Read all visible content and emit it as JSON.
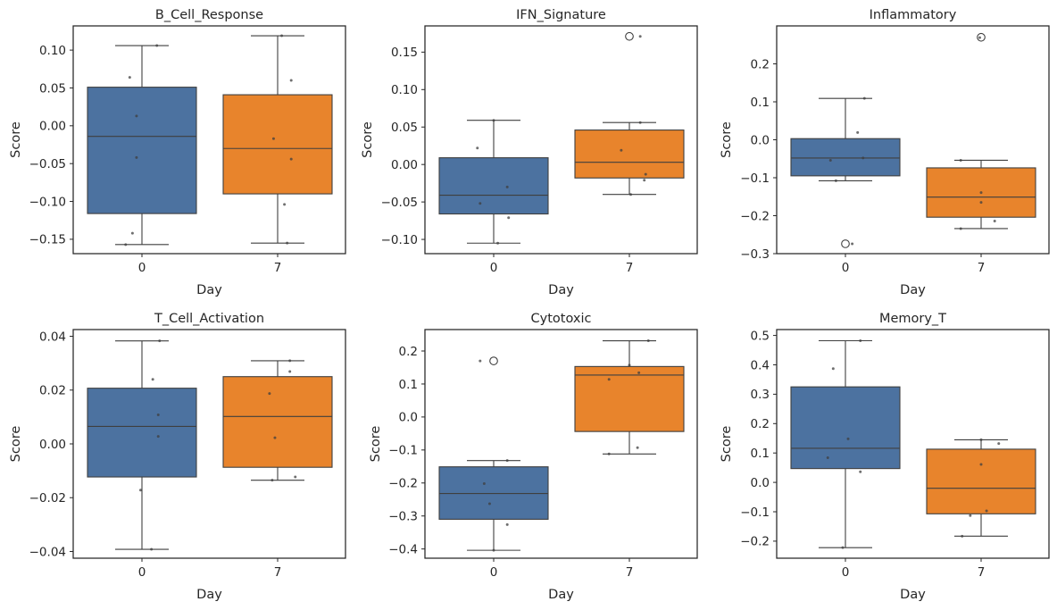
{
  "chart_data": [
    {
      "type": "box",
      "title": "B_Cell_Response",
      "xlabel": "Day",
      "ylabel": "Score",
      "categories": [
        "0",
        "7"
      ],
      "colors": [
        "#4c72a0",
        "#e8842c"
      ],
      "yticks": [
        -0.15,
        -0.1,
        -0.05,
        0.0,
        0.05,
        0.1
      ],
      "ytick_labels": [
        "−0.15",
        "−0.10",
        "−0.05",
        "0.00",
        "0.05",
        "0.10"
      ],
      "ylim": [
        -0.169,
        0.132
      ],
      "boxes": [
        {
          "q1": -0.116,
          "median": -0.014,
          "q3": 0.051,
          "whislo": -0.157,
          "whishi": 0.106,
          "fliers": []
        },
        {
          "q1": -0.09,
          "median": -0.03,
          "q3": 0.041,
          "whislo": -0.155,
          "whishi": 0.119,
          "fliers": []
        }
      ],
      "points": [
        [
          [
            -0.12,
            -0.157
          ],
          [
            -0.07,
            -0.142
          ],
          [
            -0.09,
            0.064
          ],
          [
            -0.04,
            -0.042
          ],
          [
            -0.04,
            0.013
          ],
          [
            0.11,
            0.106
          ]
        ],
        [
          [
            -0.03,
            -0.017
          ],
          [
            0.03,
            0.119
          ],
          [
            0.1,
            -0.044
          ],
          [
            0.1,
            0.06
          ],
          [
            0.05,
            -0.104
          ],
          [
            0.07,
            -0.155
          ]
        ]
      ]
    },
    {
      "type": "box",
      "title": "IFN_Signature",
      "xlabel": "Day",
      "ylabel": "Score",
      "categories": [
        "0",
        "7"
      ],
      "colors": [
        "#4c72a0",
        "#e8842c"
      ],
      "yticks": [
        -0.1,
        -0.05,
        0.0,
        0.05,
        0.1,
        0.15
      ],
      "ytick_labels": [
        "−0.10",
        "−0.05",
        "0.00",
        "0.05",
        "0.10",
        "0.15"
      ],
      "ylim": [
        -0.119,
        0.185
      ],
      "boxes": [
        {
          "q1": -0.066,
          "median": -0.041,
          "q3": 0.009,
          "whislo": -0.105,
          "whishi": 0.059,
          "fliers": []
        },
        {
          "q1": -0.018,
          "median": 0.003,
          "q3": 0.046,
          "whislo": -0.04,
          "whishi": 0.056,
          "fliers": [
            0.171
          ]
        }
      ],
      "points": [
        [
          [
            -0.12,
            0.022
          ],
          [
            -0.1,
            -0.052
          ],
          [
            0.0,
            0.059
          ],
          [
            0.1,
            -0.03
          ],
          [
            0.11,
            -0.071
          ],
          [
            0.03,
            -0.105
          ]
        ],
        [
          [
            -0.06,
            0.019
          ],
          [
            0.08,
            0.056
          ],
          [
            0.12,
            -0.013
          ],
          [
            0.11,
            -0.021
          ],
          [
            0.01,
            -0.04
          ],
          [
            0.08,
            0.171
          ]
        ]
      ]
    },
    {
      "type": "box",
      "title": "Inflammatory",
      "xlabel": "Day",
      "ylabel": "Score",
      "categories": [
        "0",
        "7"
      ],
      "colors": [
        "#4c72a0",
        "#e8842c"
      ],
      "yticks": [
        -0.3,
        -0.2,
        -0.1,
        0.0,
        0.1,
        0.2
      ],
      "ytick_labels": [
        "−0.3",
        "−0.2",
        "−0.1",
        "0.0",
        "0.1",
        "0.2"
      ],
      "ylim": [
        -0.3,
        0.3
      ],
      "boxes": [
        {
          "q1": -0.095,
          "median": -0.048,
          "q3": 0.003,
          "whislo": -0.108,
          "whishi": 0.109,
          "fliers": [
            -0.274
          ]
        },
        {
          "q1": -0.204,
          "median": -0.151,
          "q3": -0.074,
          "whislo": -0.234,
          "whishi": -0.054,
          "fliers": [
            0.27
          ]
        }
      ],
      "points": [
        [
          [
            -0.11,
            -0.054
          ],
          [
            -0.07,
            -0.108
          ],
          [
            0.09,
            0.019
          ],
          [
            0.13,
            -0.048
          ],
          [
            0.14,
            0.109
          ],
          [
            0.05,
            -0.274
          ]
        ],
        [
          [
            -0.01,
            0.269
          ],
          [
            0.0,
            -0.139
          ],
          [
            0.0,
            -0.165
          ],
          [
            0.1,
            -0.214
          ],
          [
            -0.15,
            -0.054
          ],
          [
            -0.15,
            -0.234
          ]
        ]
      ]
    },
    {
      "type": "box",
      "title": "T_Cell_Activation",
      "xlabel": "Day",
      "ylabel": "Score",
      "categories": [
        "0",
        "7"
      ],
      "colors": [
        "#4c72a0",
        "#e8842c"
      ],
      "yticks": [
        -0.04,
        -0.02,
        0.0,
        0.02,
        0.04
      ],
      "ytick_labels": [
        "−0.04",
        "−0.02",
        "0.00",
        "0.02",
        "0.04"
      ],
      "ylim": [
        -0.0425,
        0.0425
      ],
      "boxes": [
        {
          "q1": -0.0123,
          "median": 0.0065,
          "q3": 0.0207,
          "whislo": -0.0392,
          "whishi": 0.0383,
          "fliers": []
        },
        {
          "q1": -0.0087,
          "median": 0.0102,
          "q3": 0.025,
          "whislo": -0.0135,
          "whishi": 0.0309,
          "fliers": []
        }
      ],
      "points": [
        [
          [
            -0.01,
            -0.0172
          ],
          [
            0.08,
            0.024
          ],
          [
            0.12,
            0.0108
          ],
          [
            0.12,
            0.0028
          ],
          [
            0.13,
            0.0383
          ],
          [
            0.07,
            -0.0392
          ]
        ],
        [
          [
            -0.06,
            0.0187
          ],
          [
            -0.02,
            0.0023
          ],
          [
            -0.04,
            -0.0135
          ],
          [
            0.09,
            0.0309
          ],
          [
            0.09,
            0.0269
          ],
          [
            0.13,
            -0.0123
          ]
        ]
      ]
    },
    {
      "type": "box",
      "title": "Cytotoxic",
      "xlabel": "Day",
      "ylabel": "Score",
      "categories": [
        "0",
        "7"
      ],
      "colors": [
        "#4c72a0",
        "#e8842c"
      ],
      "yticks": [
        -0.4,
        -0.3,
        -0.2,
        -0.1,
        0.0,
        0.1,
        0.2
      ],
      "ytick_labels": [
        "−0.4",
        "−0.3",
        "−0.2",
        "−0.1",
        "0.0",
        "0.1",
        "0.2"
      ],
      "ylim": [
        -0.428,
        0.265
      ],
      "boxes": [
        {
          "q1": -0.31,
          "median": -0.232,
          "q3": -0.151,
          "whislo": -0.404,
          "whishi": -0.132,
          "fliers": [
            0.17
          ]
        },
        {
          "q1": -0.044,
          "median": 0.127,
          "q3": 0.153,
          "whislo": -0.112,
          "whishi": 0.231,
          "fliers": []
        }
      ],
      "points": [
        [
          [
            -0.1,
            0.17
          ],
          [
            -0.07,
            -0.202
          ],
          [
            -0.03,
            -0.263
          ],
          [
            0.1,
            -0.132
          ],
          [
            0.1,
            -0.326
          ],
          [
            0.0,
            -0.404
          ]
        ],
        [
          [
            -0.15,
            -0.112
          ],
          [
            -0.15,
            0.114
          ],
          [
            0.0,
            0.157
          ],
          [
            0.07,
            0.134
          ],
          [
            0.14,
            0.231
          ],
          [
            0.06,
            -0.093
          ]
        ]
      ]
    },
    {
      "type": "box",
      "title": "Memory_T",
      "xlabel": "Day",
      "ylabel": "Score",
      "categories": [
        "0",
        "7"
      ],
      "colors": [
        "#4c72a0",
        "#e8842c"
      ],
      "yticks": [
        -0.2,
        -0.1,
        0.0,
        0.1,
        0.2,
        0.3,
        0.4,
        0.5
      ],
      "ytick_labels": [
        "−0.2",
        "−0.1",
        "0.0",
        "0.1",
        "0.2",
        "0.3",
        "0.4",
        "0.5"
      ],
      "ylim": [
        -0.258,
        0.52
      ],
      "boxes": [
        {
          "q1": 0.047,
          "median": 0.116,
          "q3": 0.325,
          "whislo": -0.222,
          "whishi": 0.482,
          "fliers": []
        },
        {
          "q1": -0.107,
          "median": -0.02,
          "q3": 0.113,
          "whislo": -0.183,
          "whishi": 0.145,
          "fliers": []
        }
      ],
      "points": [
        [
          [
            -0.13,
            0.084
          ],
          [
            -0.09,
            0.387
          ],
          [
            0.02,
            0.148
          ],
          [
            0.11,
            0.482
          ],
          [
            0.11,
            0.036
          ],
          [
            -0.02,
            -0.222
          ]
        ],
        [
          [
            -0.14,
            -0.183
          ],
          [
            -0.08,
            -0.113
          ],
          [
            0.0,
            0.061
          ],
          [
            0.04,
            -0.097
          ],
          [
            0.13,
            0.132
          ],
          [
            0.0,
            0.145
          ]
        ]
      ]
    }
  ]
}
